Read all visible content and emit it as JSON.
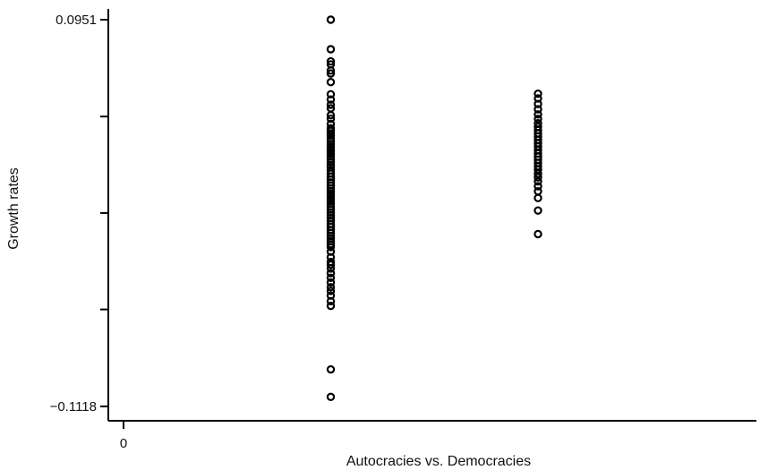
{
  "chart_data": {
    "type": "scatter",
    "title": "",
    "xlabel": "Autocracies vs. Democracies",
    "ylabel": "Growth rates",
    "xlim": [
      -0.15,
      3.1
    ],
    "ylim": [
      -0.1118,
      0.0951
    ],
    "x_ticks": [
      {
        "value": 0,
        "label": "0"
      }
    ],
    "y_ticks": [
      {
        "value": 0.0951,
        "label": "0.0951"
      },
      {
        "value": 0.0433,
        "label": ""
      },
      {
        "value": -0.0083,
        "label": ""
      },
      {
        "value": -0.0599,
        "label": ""
      },
      {
        "value": -0.1118,
        "label": "−0.1118"
      }
    ],
    "grid": false,
    "legend": "none",
    "series": [
      {
        "x": 1,
        "values": [
          0.0951,
          0.0793,
          0.0728,
          0.0712,
          0.0679,
          0.0663,
          0.0617,
          0.0552,
          0.0524,
          0.0496,
          0.0477,
          0.044,
          0.0421,
          0.0393,
          0.037,
          0.0356,
          0.0343,
          0.0332,
          0.0315,
          0.03,
          0.0286,
          0.0272,
          0.0258,
          0.0244,
          0.0231,
          0.0218,
          0.0204,
          0.0188,
          0.0172,
          0.016,
          0.0145,
          0.0128,
          0.011,
          0.0095,
          0.008,
          0.0064,
          0.0048,
          0.0034,
          0.002,
          0.0008,
          -0.0008,
          -0.002,
          -0.0034,
          -0.005,
          -0.0065,
          -0.008,
          -0.0095,
          -0.011,
          -0.0125,
          -0.0142,
          -0.0157,
          -0.0174,
          -0.019,
          -0.0205,
          -0.022,
          -0.0235,
          -0.025,
          -0.0265,
          -0.029,
          -0.032,
          -0.0345,
          -0.036,
          -0.038,
          -0.0405,
          -0.043,
          -0.0455,
          -0.048,
          -0.05,
          -0.0525,
          -0.0555,
          -0.058,
          -0.092,
          -0.1067
        ]
      },
      {
        "x": 2,
        "values": [
          0.0555,
          0.053,
          0.05,
          0.0472,
          0.0444,
          0.042,
          0.0397,
          0.0378,
          0.036,
          0.0343,
          0.0326,
          0.0308,
          0.029,
          0.0272,
          0.0253,
          0.0235,
          0.0218,
          0.0202,
          0.0185,
          0.0166,
          0.0148,
          0.0127,
          0.0108,
          0.0086,
          0.006,
          0.0033,
          -0.0003,
          -0.007,
          -0.0196
        ]
      }
    ]
  }
}
